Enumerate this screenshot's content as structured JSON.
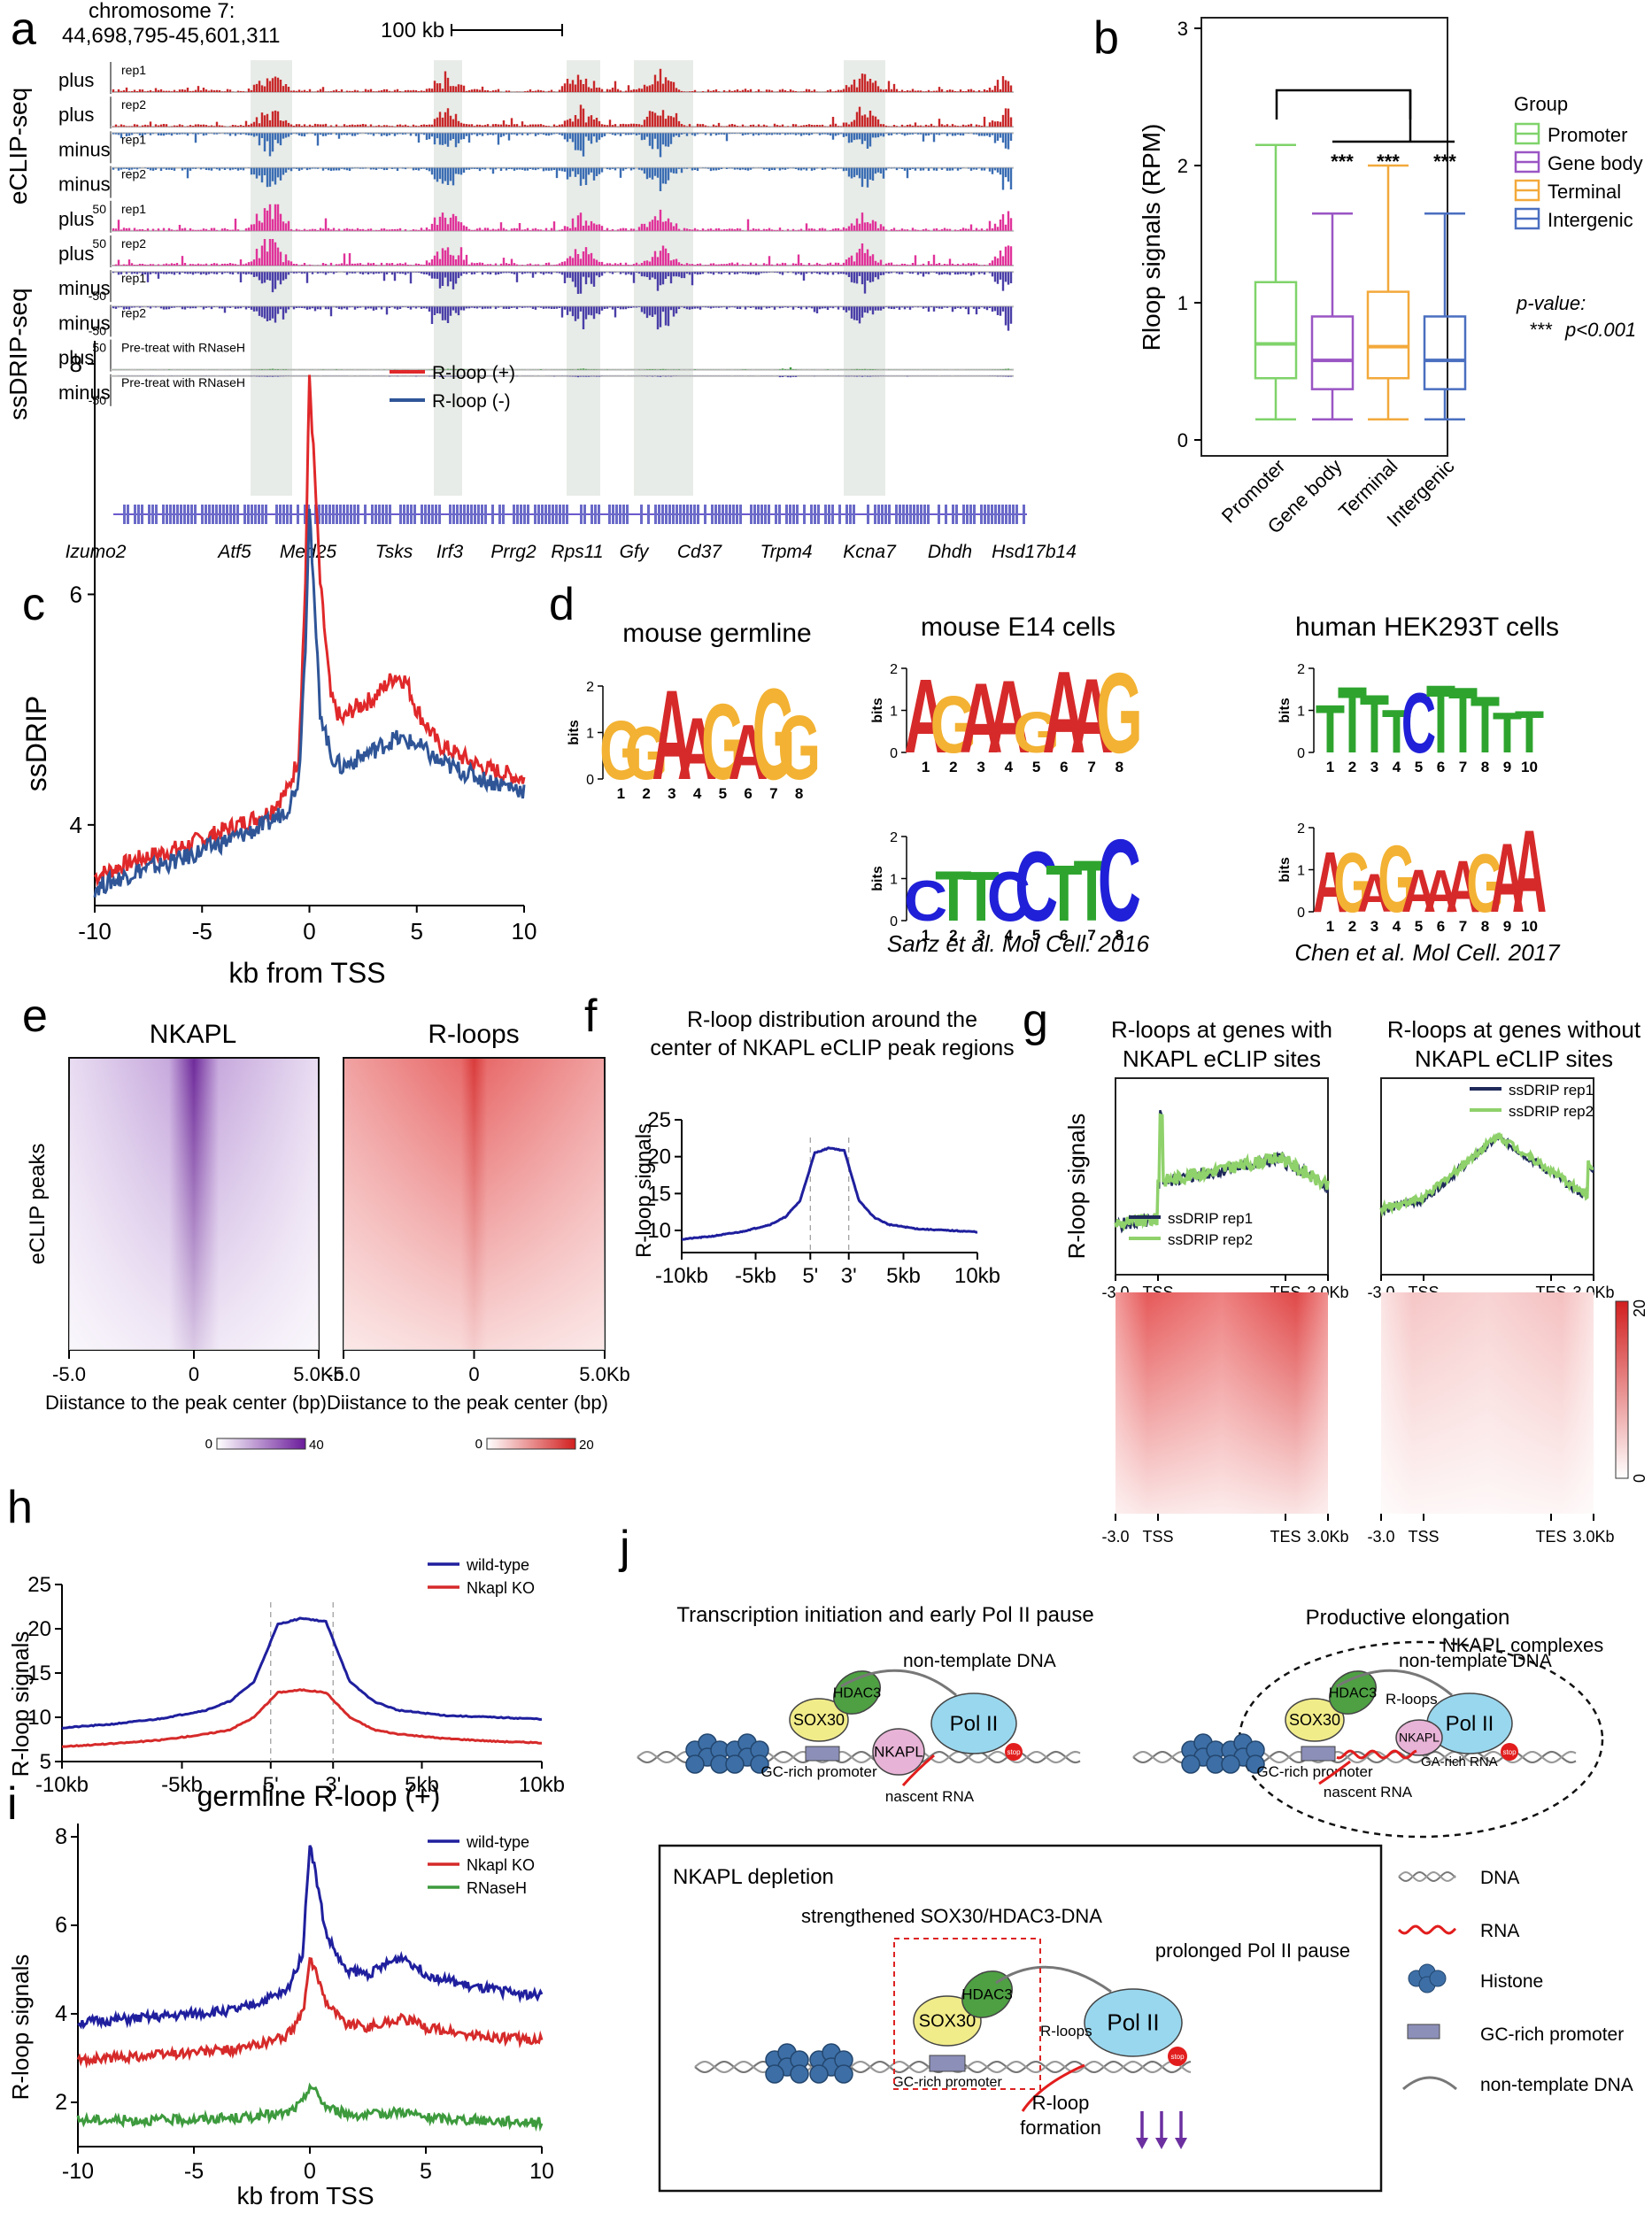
{
  "panel_labels": {
    "a": "a",
    "b": "b",
    "c": "c",
    "d": "d",
    "e": "e",
    "f": "f",
    "g": "g",
    "h": "h",
    "i": "i",
    "j": "j"
  },
  "panel_a": {
    "chrom": "chromosome 7:",
    "range": "44,698,795-45,601,311",
    "scale": "100 kb",
    "group_eclip": "eCLIP-seq",
    "group_ssdrip": "ssDRIP-seq",
    "tracks": [
      {
        "strand": "plus",
        "tag": "rep1",
        "ymax": "",
        "ymin": "",
        "color": "#c8282a"
      },
      {
        "strand": "plus",
        "tag": "rep2",
        "ymax": "",
        "ymin": "",
        "color": "#c8282a"
      },
      {
        "strand": "minus",
        "tag": "rep1",
        "ymax": "",
        "ymin": "",
        "color": "#3b6db3"
      },
      {
        "strand": "minus",
        "tag": "rep2",
        "ymax": "",
        "ymin": "",
        "color": "#3b6db3"
      },
      {
        "strand": "plus",
        "tag": "rep1",
        "ymax": "50",
        "ymin": "",
        "color": "#e0339a"
      },
      {
        "strand": "plus",
        "tag": "rep2",
        "ymax": "50",
        "ymin": "",
        "color": "#e0339a"
      },
      {
        "strand": "minus",
        "tag": "rep1",
        "ymax": "",
        "ymin": "-50",
        "color": "#4a3fa8"
      },
      {
        "strand": "minus",
        "tag": "rep2",
        "ymax": "",
        "ymin": "-50",
        "color": "#4a3fa8"
      },
      {
        "strand": "plus",
        "tag": "Pre-treat with RNaseH",
        "ymax": "50",
        "ymin": "",
        "color": "#3a9a3a"
      },
      {
        "strand": "minus",
        "tag": "Pre-treat with RNaseH",
        "ymax": "",
        "ymin": "-50",
        "color": "#4a3fa8"
      }
    ],
    "genes": [
      "Izumo2",
      "Atf5",
      "Med25",
      "Tsks",
      "Irf3",
      "Prrg2",
      "Rps11",
      "Gfy",
      "Cd37",
      "Trpm4",
      "Kcna7",
      "Dhdh",
      "Hsd17b14"
    ]
  },
  "panel_b": {
    "chart_data": {
      "type": "boxplot",
      "ylabel": "Rloop signals (RPM)",
      "ylim": [
        0,
        3
      ],
      "yticks": [
        "0",
        "1",
        "2",
        "3"
      ],
      "categories": [
        "Promoter",
        "Gene body",
        "Terminal",
        "Intergenic"
      ],
      "colors": [
        "#7fd36a",
        "#9a55c4",
        "#f3a93b",
        "#4a6fc0"
      ],
      "boxes": [
        {
          "min": 0.15,
          "q1": 0.45,
          "median": 0.7,
          "q3": 1.15,
          "max": 2.15
        },
        {
          "min": 0.15,
          "q1": 0.37,
          "median": 0.58,
          "q3": 0.9,
          "max": 1.65
        },
        {
          "min": 0.15,
          "q1": 0.45,
          "median": 0.68,
          "q3": 1.08,
          "max": 2.0
        },
        {
          "min": 0.15,
          "q1": 0.37,
          "median": 0.58,
          "q3": 0.9,
          "max": 1.65
        }
      ],
      "sig": "***",
      "legend_title": "Group",
      "pvalue_title": "p-value:",
      "pvalue_text": "p<0.001"
    }
  },
  "panel_c": {
    "chart_data": {
      "type": "line",
      "ylabel": "ssDRIP",
      "xlabel": "kb from TSS",
      "xlim": [
        -10,
        10
      ],
      "ylim": [
        3.3,
        8.2
      ],
      "xticks": [
        "-10",
        "-5",
        "0",
        "5",
        "10"
      ],
      "yticks": [
        "4",
        "6",
        "8"
      ],
      "series": [
        {
          "name": "R-loop (+)",
          "color": "#e0282a",
          "x": [
            -10,
            -8,
            -6,
            -4,
            -2,
            -1,
            -0.5,
            -0.2,
            0,
            0.2,
            0.5,
            1,
            1.5,
            2,
            3,
            4,
            4.5,
            5,
            6,
            8,
            10
          ],
          "y": [
            3.55,
            3.7,
            3.8,
            3.95,
            4.1,
            4.3,
            4.6,
            6.0,
            7.9,
            7.2,
            6.1,
            5.1,
            4.9,
            5.0,
            5.1,
            5.3,
            5.25,
            5.0,
            4.7,
            4.5,
            4.4
          ]
        },
        {
          "name": "R-loop (-)",
          "color": "#2f5597",
          "x": [
            -10,
            -8,
            -6,
            -4,
            -2,
            -1,
            -0.5,
            -0.2,
            0,
            0.2,
            0.5,
            1,
            1.5,
            2,
            3,
            4,
            5,
            6,
            8,
            10
          ],
          "y": [
            3.45,
            3.6,
            3.7,
            3.85,
            4.0,
            4.15,
            4.4,
            5.5,
            6.8,
            6.0,
            5.0,
            4.6,
            4.5,
            4.55,
            4.65,
            4.75,
            4.7,
            4.55,
            4.4,
            4.3
          ]
        }
      ]
    }
  },
  "panel_d": {
    "groups": [
      {
        "title": "mouse germline",
        "logos": [
          {
            "motif": "GGAAGAGG",
            "positions": [
              "1",
              "2",
              "3",
              "4",
              "5",
              "6",
              "7",
              "8"
            ]
          }
        ],
        "citation": ""
      },
      {
        "title": "mouse E14 cells",
        "logos": [
          {
            "motif": "AGAAGAAG",
            "positions": [
              "1",
              "2",
              "3",
              "4",
              "5",
              "6",
              "7",
              "8"
            ]
          },
          {
            "motif": "CTTCCTTC",
            "positions": [
              "1",
              "2",
              "3",
              "4",
              "5",
              "6",
              "7",
              "8"
            ]
          }
        ],
        "citation": "Sanz et al. Mol Cell. 2016"
      },
      {
        "title": "human HEK293T cells",
        "logos": [
          {
            "motif": "TTTTCTTTTT",
            "positions": [
              "1",
              "2",
              "3",
              "4",
              "5",
              "6",
              "7",
              "8",
              "9",
              "10"
            ]
          },
          {
            "motif": "AGAGAAAGAA",
            "positions": [
              "1",
              "2",
              "3",
              "4",
              "5",
              "6",
              "7",
              "8",
              "9",
              "10"
            ]
          }
        ],
        "citation": "Chen et al. Mol Cell. 2017"
      }
    ],
    "ylabel": "bits",
    "yticks": [
      "0",
      "1",
      "2"
    ]
  },
  "panel_e": {
    "titles": [
      "NKAPL",
      "R-loops"
    ],
    "ylabel": "eCLIP peaks",
    "xticks": [
      "-5.0",
      "0",
      "5.0Kb"
    ],
    "xlabel": "Diistance to the peak center (bp)",
    "scale1": [
      "0",
      "40"
    ],
    "scale2": [
      "0",
      "20"
    ]
  },
  "panel_f": {
    "title1": "R-loop distribution around the",
    "title2": "center of NKAPL eCLIP  peak regions",
    "chart_data": {
      "type": "line",
      "ylabel": "R-loop signals",
      "xticks": [
        "-10kb",
        "-5kb",
        "5'",
        "3'",
        "5kb",
        "10kb"
      ],
      "yticks": [
        "10",
        "15",
        "20",
        "25"
      ],
      "ylim": [
        7,
        25
      ],
      "series": [
        {
          "name": "R-loop",
          "color": "#1f1f9e",
          "x": [
            -10,
            -8,
            -6,
            -4,
            -3,
            -2,
            -1,
            0,
            1,
            2,
            3,
            4,
            6,
            8,
            10
          ],
          "y": [
            8.8,
            9.2,
            9.8,
            10.8,
            11.8,
            14,
            20.5,
            21.2,
            20.8,
            14,
            11.8,
            10.8,
            10.2,
            10,
            9.8
          ]
        }
      ]
    }
  },
  "panel_g": {
    "title_left1": "R-loops at genes with",
    "title_left2": "NKAPL eCLIP sites",
    "title_right1": "R-loops at genes without",
    "title_right2": "NKAPL eCLIP sites",
    "ylabel": "R-loop signals",
    "xticks": [
      "-3.0",
      "TSS",
      "TES",
      "3.0Kb"
    ],
    "legend": [
      "ssDRIP rep1",
      "ssDRIP rep2"
    ],
    "scale": [
      "20",
      "0"
    ]
  },
  "panel_h": {
    "chart_data": {
      "type": "line",
      "ylabel": "R-loop signals",
      "xticks": [
        "-10kb",
        "-5kb",
        "5'",
        "3'",
        "5kb",
        "10kb"
      ],
      "yticks": [
        "5",
        "10",
        "15",
        "20",
        "25"
      ],
      "ylim": [
        5,
        25
      ],
      "series": [
        {
          "name": "wild-type",
          "color": "#1f1f9e",
          "x": [
            -10,
            -8,
            -6,
            -4,
            -3,
            -2,
            -1,
            0,
            1,
            2,
            3,
            4,
            6,
            8,
            10
          ],
          "y": [
            8.8,
            9.2,
            9.8,
            10.8,
            11.8,
            14,
            20.5,
            21.2,
            20.8,
            14,
            11.8,
            10.8,
            10.2,
            10,
            9.8
          ]
        },
        {
          "name": "Nkapl KO",
          "color": "#d62a2a",
          "x": [
            -10,
            -8,
            -6,
            -4,
            -3,
            -2,
            -1,
            0,
            1,
            2,
            3,
            4,
            6,
            8,
            10
          ],
          "y": [
            6.7,
            7,
            7.4,
            8.1,
            8.6,
            10,
            12.8,
            13.1,
            12.8,
            10,
            8.6,
            8.1,
            7.6,
            7.3,
            7.1
          ]
        }
      ]
    }
  },
  "panel_i": {
    "title": "germline R-loop (+)",
    "chart_data": {
      "type": "line",
      "ylabel": "R-loop signals",
      "xlabel": "kb from TSS",
      "xticks": [
        "-10",
        "-5",
        "0",
        "5",
        "10"
      ],
      "yticks": [
        "2",
        "4",
        "6",
        "8"
      ],
      "xlim": [
        -10,
        10
      ],
      "ylim": [
        1,
        8.3
      ],
      "series": [
        {
          "name": "wild-type",
          "color": "#1f1f9e",
          "x": [
            -10,
            -6,
            -3,
            -1,
            -0.3,
            0,
            0.3,
            0.7,
            1.5,
            2.5,
            4,
            5,
            7,
            10
          ],
          "y": [
            3.8,
            3.95,
            4.1,
            4.5,
            5.4,
            7.9,
            7.0,
            5.8,
            5.0,
            4.9,
            5.3,
            4.9,
            4.6,
            4.4
          ]
        },
        {
          "name": "Nkapl KO",
          "color": "#d62a2a",
          "x": [
            -10,
            -6,
            -3,
            -1,
            -0.3,
            0,
            0.3,
            0.7,
            1.5,
            2.5,
            4,
            5,
            7,
            10
          ],
          "y": [
            2.95,
            3.1,
            3.2,
            3.5,
            4.0,
            5.2,
            4.9,
            4.3,
            3.8,
            3.7,
            3.9,
            3.7,
            3.5,
            3.4
          ]
        },
        {
          "name": "RNaseH",
          "color": "#3d9a3d",
          "x": [
            -10,
            -6,
            -3,
            -1,
            -0.3,
            0,
            0.3,
            0.7,
            1.5,
            2.5,
            4,
            5,
            7,
            10
          ],
          "y": [
            1.6,
            1.6,
            1.65,
            1.75,
            2.0,
            2.4,
            2.2,
            1.9,
            1.75,
            1.7,
            1.8,
            1.65,
            1.6,
            1.55
          ]
        }
      ]
    }
  },
  "panel_j": {
    "title_left": "Transcription initiation and early Pol II pause",
    "title_right": "Productive elongation",
    "complex": "NKAPL complexes",
    "sox30": "SOX30",
    "hdac3": "HDAC3",
    "nkapl": "NKAPL",
    "pol2": "Pol II",
    "nontemplate": "non-template DNA",
    "gcpromoter": "GC-rich promoter",
    "nascent": "nascent RNA",
    "rloops": "R-loops",
    "garich": "GA-rich RNA",
    "stop": "stop",
    "depletion_title": "NKAPL depletion",
    "strengthened": "strengthened SOX30/HDAC3-DNA",
    "prolonged": "prolonged Pol II pause",
    "rloop_form1": "R-loop",
    "rloop_form2": "formation",
    "legend": [
      "DNA",
      "RNA",
      "Histone",
      "GC-rich promoter",
      "non-template DNA"
    ]
  }
}
